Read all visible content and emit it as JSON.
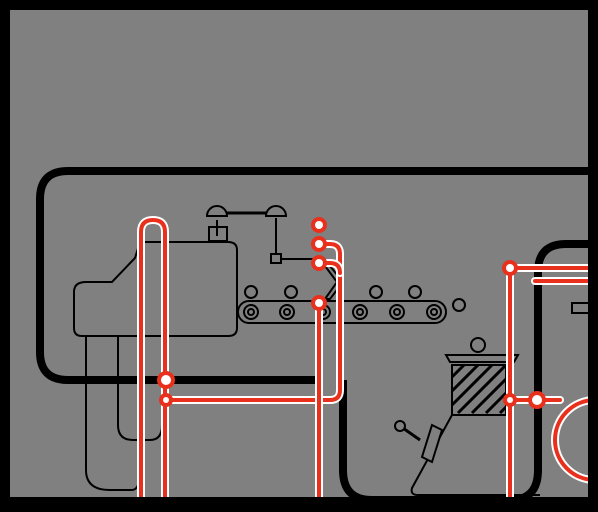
{
  "screen": {
    "background_color": "#808080",
    "frame_color": "#000000",
    "wire_color": "#e8301c",
    "wire_highlight_color": "#ffffff",
    "machine_outline_color": "#000000"
  },
  "scene": {
    "machines": [
      {
        "name": "press-machine",
        "icon": "factory-press-icon"
      },
      {
        "name": "robot-arm",
        "icon": "robot-arm-icon"
      },
      {
        "name": "conveyor-belt",
        "icon": "conveyor-icon"
      },
      {
        "name": "flask-machine",
        "icon": "lab-flask-icon"
      }
    ]
  }
}
